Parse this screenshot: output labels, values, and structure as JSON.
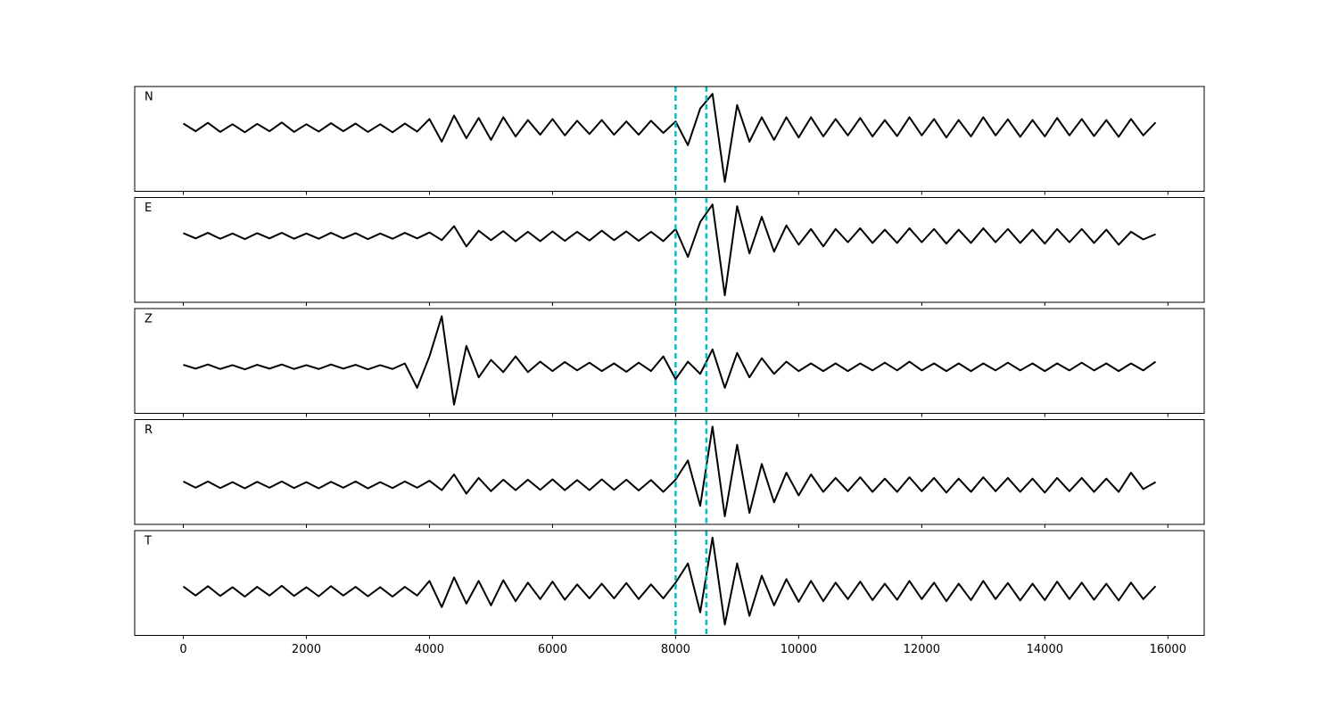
{
  "chart_data": {
    "type": "line",
    "subplots": true,
    "x": [
      0,
      200,
      400,
      600,
      800,
      1000,
      1200,
      1400,
      1600,
      1800,
      2000,
      2200,
      2400,
      2600,
      2800,
      3000,
      3200,
      3400,
      3600,
      3800,
      4000,
      4200,
      4400,
      4600,
      4800,
      5000,
      5200,
      5400,
      5600,
      5800,
      6000,
      6200,
      6400,
      6600,
      6800,
      7000,
      7200,
      7400,
      7600,
      7800,
      8000,
      8200,
      8400,
      8600,
      8800,
      9000,
      9200,
      9400,
      9600,
      9800,
      10000,
      10200,
      10400,
      10600,
      10800,
      11000,
      11200,
      11400,
      11600,
      11800,
      12000,
      12200,
      12400,
      12600,
      12800,
      13000,
      13200,
      13400,
      13600,
      13800,
      14000,
      14200,
      14400,
      14600,
      14800,
      15000,
      15200,
      15400,
      15600,
      15800
    ],
    "xlim": [
      -790,
      16590
    ],
    "xticks": [
      0,
      2000,
      4000,
      6000,
      8000,
      10000,
      12000,
      14000,
      16000
    ],
    "vlines": [
      8000,
      8500
    ],
    "vline_color": "#00bfbf",
    "series": [
      {
        "name": "N",
        "color": "#000000",
        "ylim": [
          -1.82,
          1.18
        ],
        "values": [
          0.12,
          -0.1,
          0.14,
          -0.12,
          0.1,
          -0.13,
          0.11,
          -0.1,
          0.15,
          -0.12,
          0.1,
          -0.11,
          0.13,
          -0.1,
          0.12,
          -0.12,
          0.1,
          -0.13,
          0.12,
          -0.11,
          0.25,
          -0.4,
          0.35,
          -0.3,
          0.28,
          -0.35,
          0.3,
          -0.25,
          0.22,
          -0.2,
          0.25,
          -0.22,
          0.2,
          -0.18,
          0.22,
          -0.2,
          0.18,
          -0.2,
          0.2,
          -0.15,
          0.18,
          -0.5,
          0.55,
          0.97,
          -1.55,
          0.65,
          -0.4,
          0.3,
          -0.35,
          0.3,
          -0.28,
          0.3,
          -0.25,
          0.25,
          -0.22,
          0.28,
          -0.25,
          0.22,
          -0.24,
          0.3,
          -0.22,
          0.25,
          -0.28,
          0.22,
          -0.25,
          0.3,
          -0.22,
          0.24,
          -0.26,
          0.22,
          -0.25,
          0.28,
          -0.22,
          0.25,
          -0.24,
          0.22,
          -0.26,
          0.25,
          -0.22,
          0.15
        ]
      },
      {
        "name": "E",
        "color": "#000000",
        "ylim": [
          -1.9,
          1.1
        ],
        "values": [
          0.08,
          -0.07,
          0.09,
          -0.08,
          0.07,
          -0.09,
          0.08,
          -0.07,
          0.09,
          -0.08,
          0.07,
          -0.08,
          0.09,
          -0.07,
          0.08,
          -0.09,
          0.07,
          -0.08,
          0.09,
          -0.07,
          0.1,
          -0.12,
          0.28,
          -0.3,
          0.15,
          -0.12,
          0.14,
          -0.15,
          0.12,
          -0.15,
          0.13,
          -0.14,
          0.12,
          -0.13,
          0.15,
          -0.12,
          0.13,
          -0.14,
          0.12,
          -0.15,
          0.2,
          -0.6,
          0.4,
          0.9,
          -1.7,
          0.85,
          -0.5,
          0.55,
          -0.45,
          0.3,
          -0.25,
          0.2,
          -0.3,
          0.2,
          -0.18,
          0.22,
          -0.2,
          0.18,
          -0.2,
          0.22,
          -0.18,
          0.2,
          -0.22,
          0.18,
          -0.2,
          0.22,
          -0.18,
          0.2,
          -0.2,
          0.18,
          -0.22,
          0.2,
          -0.18,
          0.2,
          -0.2,
          0.18,
          -0.25,
          0.12,
          -0.1,
          0.05
        ]
      },
      {
        "name": "Z",
        "color": "#000000",
        "ylim": [
          -1.33,
          1.67
        ],
        "values": [
          0.06,
          -0.05,
          0.07,
          -0.06,
          0.05,
          -0.07,
          0.06,
          -0.05,
          0.07,
          -0.06,
          0.05,
          -0.06,
          0.07,
          -0.05,
          0.06,
          -0.07,
          0.05,
          -0.06,
          0.1,
          -0.6,
          0.3,
          1.45,
          -1.08,
          0.6,
          -0.3,
          0.2,
          -0.15,
          0.3,
          -0.15,
          0.15,
          -0.12,
          0.14,
          -0.1,
          0.12,
          -0.12,
          0.1,
          -0.14,
          0.12,
          -0.12,
          0.3,
          -0.35,
          0.15,
          -0.2,
          0.5,
          -0.6,
          0.4,
          -0.3,
          0.25,
          -0.2,
          0.15,
          -0.12,
          0.1,
          -0.12,
          0.1,
          -0.12,
          0.1,
          -0.1,
          0.12,
          -0.1,
          0.15,
          -0.1,
          0.1,
          -0.12,
          0.1,
          -0.12,
          0.1,
          -0.1,
          0.12,
          -0.1,
          0.1,
          -0.12,
          0.1,
          -0.1,
          0.12,
          -0.1,
          0.1,
          -0.12,
          0.1,
          -0.1,
          0.15
        ]
      },
      {
        "name": "R",
        "color": "#000000",
        "ylim": [
          -1.13,
          1.87
        ],
        "values": [
          0.1,
          -0.08,
          0.1,
          -0.09,
          0.08,
          -0.1,
          0.09,
          -0.08,
          0.1,
          -0.09,
          0.08,
          -0.1,
          0.09,
          -0.08,
          0.1,
          -0.1,
          0.08,
          -0.09,
          0.1,
          -0.08,
          0.12,
          -0.15,
          0.3,
          -0.25,
          0.2,
          -0.18,
          0.15,
          -0.15,
          0.15,
          -0.14,
          0.16,
          -0.15,
          0.14,
          -0.15,
          0.16,
          -0.14,
          0.15,
          -0.16,
          0.14,
          -0.2,
          0.15,
          0.7,
          -0.6,
          1.67,
          -0.9,
          1.15,
          -0.8,
          0.6,
          -0.5,
          0.35,
          -0.3,
          0.3,
          -0.2,
          0.2,
          -0.18,
          0.22,
          -0.2,
          0.18,
          -0.2,
          0.22,
          -0.18,
          0.2,
          -0.22,
          0.18,
          -0.2,
          0.22,
          -0.18,
          0.2,
          -0.2,
          0.18,
          -0.22,
          0.2,
          -0.18,
          0.2,
          -0.2,
          0.18,
          -0.2,
          0.35,
          -0.12,
          0.08
        ]
      },
      {
        "name": "T",
        "color": "#000000",
        "ylim": [
          -1.26,
          1.74
        ],
        "values": [
          0.14,
          -0.12,
          0.15,
          -0.13,
          0.12,
          -0.15,
          0.13,
          -0.12,
          0.16,
          -0.13,
          0.12,
          -0.14,
          0.15,
          -0.12,
          0.13,
          -0.14,
          0.12,
          -0.15,
          0.13,
          -0.12,
          0.3,
          -0.45,
          0.4,
          -0.35,
          0.3,
          -0.4,
          0.32,
          -0.28,
          0.25,
          -0.22,
          0.28,
          -0.24,
          0.2,
          -0.2,
          0.22,
          -0.2,
          0.24,
          -0.22,
          0.2,
          -0.2,
          0.25,
          0.8,
          -0.6,
          1.54,
          -0.95,
          0.8,
          -0.7,
          0.45,
          -0.4,
          0.35,
          -0.3,
          0.3,
          -0.28,
          0.25,
          -0.22,
          0.28,
          -0.25,
          0.22,
          -0.24,
          0.3,
          -0.22,
          0.25,
          -0.28,
          0.22,
          -0.25,
          0.3,
          -0.22,
          0.24,
          -0.26,
          0.22,
          -0.25,
          0.28,
          -0.22,
          0.25,
          -0.24,
          0.22,
          -0.26,
          0.25,
          -0.22,
          0.15
        ]
      }
    ]
  }
}
